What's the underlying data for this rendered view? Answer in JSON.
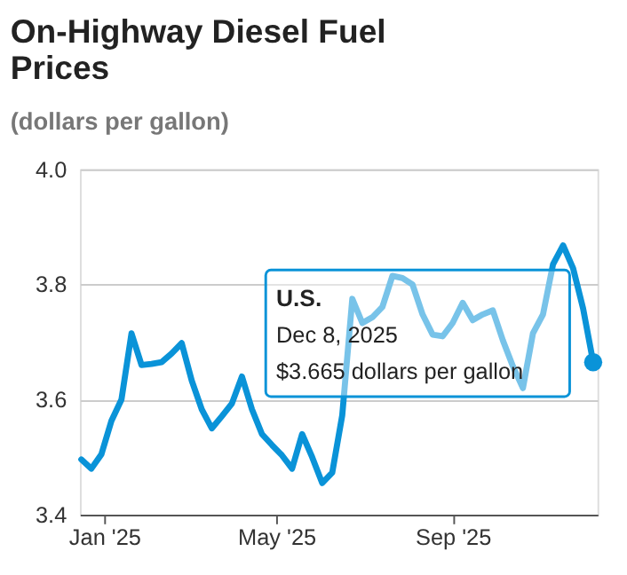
{
  "chart_data": {
    "type": "line",
    "title": "On-Highway Diesel Fuel Prices",
    "subtitle": "(dollars per gallon)",
    "x": [
      "2024-12-16",
      "2024-12-23",
      "2024-12-30",
      "2025-01-06",
      "2025-01-13",
      "2025-01-20",
      "2025-01-27",
      "2025-02-03",
      "2025-02-10",
      "2025-02-17",
      "2025-02-24",
      "2025-03-03",
      "2025-03-10",
      "2025-03-17",
      "2025-03-24",
      "2025-03-31",
      "2025-04-07",
      "2025-04-14",
      "2025-04-21",
      "2025-04-28",
      "2025-05-05",
      "2025-05-12",
      "2025-05-19",
      "2025-05-26",
      "2025-06-02",
      "2025-06-09",
      "2025-06-16",
      "2025-06-23",
      "2025-06-30",
      "2025-07-07",
      "2025-07-14",
      "2025-07-21",
      "2025-07-28",
      "2025-08-04",
      "2025-08-11",
      "2025-08-18",
      "2025-08-25",
      "2025-09-01",
      "2025-09-08",
      "2025-09-15",
      "2025-09-22",
      "2025-09-29",
      "2025-10-06",
      "2025-10-13",
      "2025-10-20",
      "2025-10-27",
      "2025-11-03",
      "2025-11-10",
      "2025-11-17",
      "2025-11-24",
      "2025-12-01",
      "2025-12-08"
    ],
    "series": [
      {
        "name": "U.S.",
        "color": "#0a93d8",
        "values": [
          3.496,
          3.48,
          3.505,
          3.563,
          3.6,
          3.715,
          3.66,
          3.662,
          3.665,
          3.68,
          3.698,
          3.633,
          3.583,
          3.55,
          3.571,
          3.593,
          3.64,
          3.583,
          3.54,
          3.521,
          3.503,
          3.48,
          3.54,
          3.5,
          3.455,
          3.473,
          3.573,
          3.775,
          3.733,
          3.743,
          3.761,
          3.815,
          3.811,
          3.8,
          3.748,
          3.713,
          3.71,
          3.733,
          3.768,
          3.738,
          3.748,
          3.755,
          3.703,
          3.658,
          3.62,
          3.715,
          3.748,
          3.835,
          3.868,
          3.828,
          3.758,
          3.665
        ]
      }
    ],
    "annotations": [
      "Dec 8, 2025",
      "$3.665 dollars per gallon"
    ],
    "xlim": [
      "2024-12-15",
      "2025-12-11"
    ],
    "xticks": [
      {
        "value": "2025-01-01",
        "label": "Jan '25"
      },
      {
        "value": "2025-05-01",
        "label": "May '25"
      },
      {
        "value": "2025-09-01",
        "label": "Sep '25"
      }
    ],
    "ylim": [
      3.4,
      4.0
    ],
    "yticks": [
      {
        "value": 3.4,
        "label": "3.4"
      },
      {
        "value": 3.6,
        "label": "3.6"
      },
      {
        "value": 3.8,
        "label": "3.8"
      },
      {
        "value": 4.0,
        "label": "4.0"
      }
    ],
    "grid": "y",
    "marker": "none",
    "line_style": "solid"
  }
}
